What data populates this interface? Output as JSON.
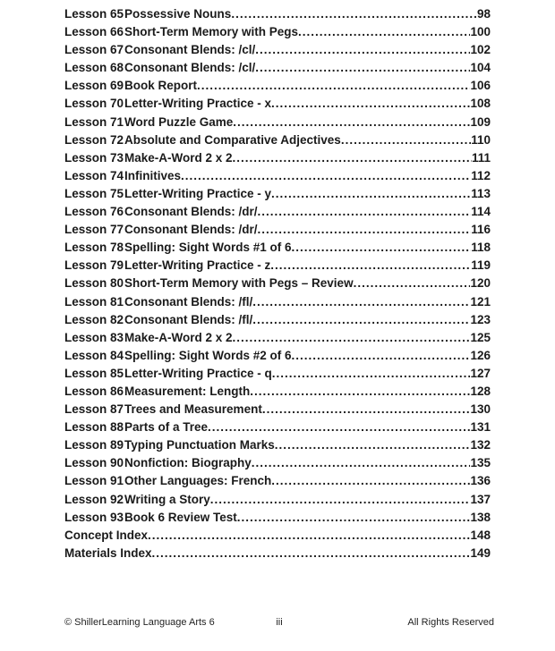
{
  "toc": {
    "entries": [
      {
        "label": "Lesson 65",
        "title": "Possessive Nouns",
        "page": "98"
      },
      {
        "label": "Lesson 66",
        "title": "Short-Term Memory with Pegs ",
        "page": "100"
      },
      {
        "label": "Lesson 67",
        "title": "Consonant Blends: /cl/",
        "page": "102"
      },
      {
        "label": "Lesson 68",
        "title": "Consonant Blends: /cl/",
        "page": "104"
      },
      {
        "label": "Lesson 69",
        "title": "Book Report",
        "page": "106"
      },
      {
        "label": "Lesson 70",
        "title": "Letter-Writing Practice - x ",
        "page": "108"
      },
      {
        "label": "Lesson 71",
        "title": "Word Puzzle Game",
        "page": "109"
      },
      {
        "label": "Lesson 72",
        "title": "Absolute and Comparative Adjectives",
        "page": "110"
      },
      {
        "label": "Lesson 73",
        "title": "Make-A-Word 2 x 2 ",
        "page": "111"
      },
      {
        "label": "Lesson 74",
        "title": "Infinitives",
        "page": "112"
      },
      {
        "label": "Lesson 75",
        "title": "Letter-Writing Practice - y ",
        "page": "113"
      },
      {
        "label": "Lesson 76",
        "title": "Consonant Blends: /dr/",
        "page": "114"
      },
      {
        "label": "Lesson 77",
        "title": "Consonant Blends: /dr/",
        "page": "116"
      },
      {
        "label": "Lesson 78",
        "title": "Spelling: Sight Words #1 of 6",
        "page": "118"
      },
      {
        "label": "Lesson 79",
        "title": "Letter-Writing Practice - z ",
        "page": "119"
      },
      {
        "label": "Lesson 80",
        "title": "Short-Term Memory with Pegs – Review ",
        "page": "120"
      },
      {
        "label": "Lesson 81",
        "title": "Consonant Blends: /fl/",
        "page": "121"
      },
      {
        "label": "Lesson 82",
        "title": "Consonant Blends: /fl/",
        "page": "123"
      },
      {
        "label": "Lesson 83",
        "title": "Make-A-Word 2 x 2 ",
        "page": "125"
      },
      {
        "label": "Lesson 84",
        "title": "Spelling: Sight Words #2 of 6",
        "page": "126"
      },
      {
        "label": "Lesson 85",
        "title": "Letter-Writing Practice - q ",
        "page": "127"
      },
      {
        "label": "Lesson 86",
        "title": "Measurement: Length",
        "page": "128"
      },
      {
        "label": "Lesson 87",
        "title": "Trees and Measurement ",
        "page": "130"
      },
      {
        "label": "Lesson 88",
        "title": "Parts of a Tree",
        "page": "131"
      },
      {
        "label": "Lesson 89",
        "title": "Typing Punctuation Marks ",
        "page": "132"
      },
      {
        "label": "Lesson 90",
        "title": "Nonfiction: Biography ",
        "page": "135"
      },
      {
        "label": "Lesson 91",
        "title": "Other Languages: French ",
        "page": "136"
      },
      {
        "label": "Lesson 92",
        "title": "Writing a Story",
        "page": "137"
      },
      {
        "label": "Lesson 93",
        "title": "Book 6 Review Test",
        "page": "138"
      },
      {
        "label": "",
        "title": "Concept Index",
        "page": "148"
      },
      {
        "label": "",
        "title": "Materials Index",
        "page": "149"
      }
    ]
  },
  "footer": {
    "left": "© ShillerLearning Language Arts 6",
    "center": "iii",
    "right": "All Rights Reserved"
  }
}
